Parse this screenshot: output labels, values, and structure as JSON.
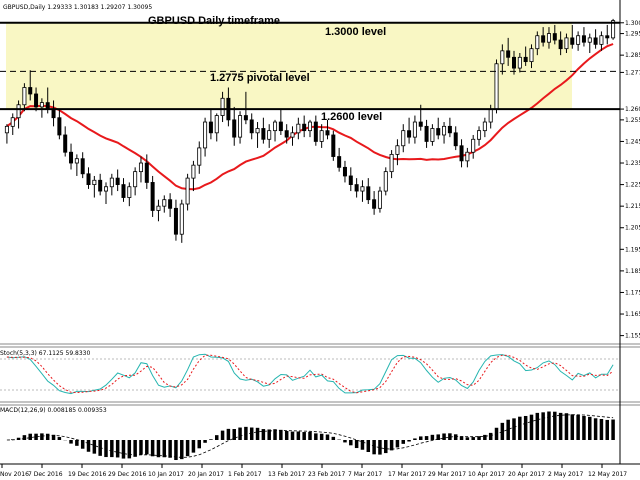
{
  "header": {
    "symbol_info": "GBPUSD,Daily  1.29333 1.30183 1.29207 1.30095",
    "title": "GBPUSD Daily timeframe"
  },
  "annotations": {
    "level_1300": "1.3000 level",
    "level_12775": "1.2775 pivotal level",
    "level_1260": "1.2600 level"
  },
  "indicators": {
    "stoch_label": "Stoch(5,3,3) 67.1125 59.8330",
    "macd_label": "MACD(12,26,9) 0.008185 0.009353"
  },
  "colors": {
    "zone": "#f9f7c4",
    "ma": "#e8191c",
    "stoch_main": "#26b5b0",
    "stoch_signal": "#e8191c"
  },
  "chart_data": {
    "type": "candlestick",
    "price_axis_ticks": [
      "1.300",
      "1.295",
      "1.285",
      "1.277",
      "1.260",
      "1.255",
      "1.245",
      "1.235",
      "1.225",
      "1.215",
      "1.205",
      "1.195",
      "1.185",
      "1.175",
      "1.165",
      "1.155"
    ],
    "date_axis_ticks": [
      "Nov 2016",
      "7 Dec 2016",
      "19 Dec 2016",
      "29 Dec 2016",
      "10 Jan 2017",
      "20 Jan 2017",
      "1 Feb 2017",
      "13 Feb 2017",
      "23 Feb 2017",
      "7 Mar 2017",
      "17 Mar 2017",
      "29 Mar 2017",
      "10 Apr 2017",
      "20 Apr 2017",
      "2 May 2017",
      "12 May 2017"
    ],
    "ylim": [
      1.1525,
      1.305
    ],
    "levels": [
      1.3,
      1.2775,
      1.26
    ],
    "candles": [
      {
        "o": 1.249,
        "h": 1.253,
        "l": 1.244,
        "c": 1.252
      },
      {
        "o": 1.252,
        "h": 1.258,
        "l": 1.248,
        "c": 1.256
      },
      {
        "o": 1.256,
        "h": 1.264,
        "l": 1.251,
        "c": 1.262
      },
      {
        "o": 1.262,
        "h": 1.272,
        "l": 1.259,
        "c": 1.27
      },
      {
        "o": 1.27,
        "h": 1.278,
        "l": 1.264,
        "c": 1.267
      },
      {
        "o": 1.267,
        "h": 1.27,
        "l": 1.259,
        "c": 1.261
      },
      {
        "o": 1.261,
        "h": 1.265,
        "l": 1.256,
        "c": 1.263
      },
      {
        "o": 1.263,
        "h": 1.27,
        "l": 1.258,
        "c": 1.26
      },
      {
        "o": 1.26,
        "h": 1.264,
        "l": 1.252,
        "c": 1.256
      },
      {
        "o": 1.256,
        "h": 1.26,
        "l": 1.246,
        "c": 1.248
      },
      {
        "o": 1.248,
        "h": 1.252,
        "l": 1.238,
        "c": 1.24
      },
      {
        "o": 1.24,
        "h": 1.244,
        "l": 1.232,
        "c": 1.235
      },
      {
        "o": 1.235,
        "h": 1.239,
        "l": 1.229,
        "c": 1.237
      },
      {
        "o": 1.237,
        "h": 1.24,
        "l": 1.228,
        "c": 1.23
      },
      {
        "o": 1.23,
        "h": 1.233,
        "l": 1.223,
        "c": 1.225
      },
      {
        "o": 1.225,
        "h": 1.229,
        "l": 1.219,
        "c": 1.227
      },
      {
        "o": 1.227,
        "h": 1.23,
        "l": 1.22,
        "c": 1.222
      },
      {
        "o": 1.222,
        "h": 1.226,
        "l": 1.216,
        "c": 1.224
      },
      {
        "o": 1.224,
        "h": 1.23,
        "l": 1.22,
        "c": 1.228
      },
      {
        "o": 1.228,
        "h": 1.232,
        "l": 1.222,
        "c": 1.225
      },
      {
        "o": 1.225,
        "h": 1.228,
        "l": 1.217,
        "c": 1.219
      },
      {
        "o": 1.219,
        "h": 1.226,
        "l": 1.215,
        "c": 1.224
      },
      {
        "o": 1.224,
        "h": 1.233,
        "l": 1.22,
        "c": 1.231
      },
      {
        "o": 1.231,
        "h": 1.238,
        "l": 1.226,
        "c": 1.235
      },
      {
        "o": 1.235,
        "h": 1.239,
        "l": 1.223,
        "c": 1.226
      },
      {
        "o": 1.226,
        "h": 1.229,
        "l": 1.21,
        "c": 1.213
      },
      {
        "o": 1.213,
        "h": 1.218,
        "l": 1.208,
        "c": 1.215
      },
      {
        "o": 1.215,
        "h": 1.22,
        "l": 1.212,
        "c": 1.218
      },
      {
        "o": 1.218,
        "h": 1.221,
        "l": 1.21,
        "c": 1.214
      },
      {
        "o": 1.214,
        "h": 1.218,
        "l": 1.199,
        "c": 1.202
      },
      {
        "o": 1.202,
        "h": 1.218,
        "l": 1.198,
        "c": 1.216
      },
      {
        "o": 1.216,
        "h": 1.23,
        "l": 1.213,
        "c": 1.228
      },
      {
        "o": 1.228,
        "h": 1.236,
        "l": 1.222,
        "c": 1.234
      },
      {
        "o": 1.234,
        "h": 1.245,
        "l": 1.23,
        "c": 1.242
      },
      {
        "o": 1.242,
        "h": 1.256,
        "l": 1.238,
        "c": 1.254
      },
      {
        "o": 1.254,
        "h": 1.26,
        "l": 1.246,
        "c": 1.249
      },
      {
        "o": 1.249,
        "h": 1.258,
        "l": 1.245,
        "c": 1.257
      },
      {
        "o": 1.257,
        "h": 1.268,
        "l": 1.254,
        "c": 1.265
      },
      {
        "o": 1.265,
        "h": 1.27,
        "l": 1.252,
        "c": 1.255
      },
      {
        "o": 1.255,
        "h": 1.261,
        "l": 1.243,
        "c": 1.247
      },
      {
        "o": 1.247,
        "h": 1.259,
        "l": 1.244,
        "c": 1.257
      },
      {
        "o": 1.257,
        "h": 1.268,
        "l": 1.253,
        "c": 1.255
      },
      {
        "o": 1.255,
        "h": 1.258,
        "l": 1.246,
        "c": 1.249
      },
      {
        "o": 1.249,
        "h": 1.254,
        "l": 1.242,
        "c": 1.251
      },
      {
        "o": 1.251,
        "h": 1.256,
        "l": 1.244,
        "c": 1.246
      },
      {
        "o": 1.246,
        "h": 1.253,
        "l": 1.242,
        "c": 1.25
      },
      {
        "o": 1.25,
        "h": 1.255,
        "l": 1.245,
        "c": 1.254
      },
      {
        "o": 1.254,
        "h": 1.26,
        "l": 1.248,
        "c": 1.25
      },
      {
        "o": 1.25,
        "h": 1.253,
        "l": 1.244,
        "c": 1.247
      },
      {
        "o": 1.247,
        "h": 1.252,
        "l": 1.243,
        "c": 1.249
      },
      {
        "o": 1.249,
        "h": 1.256,
        "l": 1.246,
        "c": 1.253
      },
      {
        "o": 1.253,
        "h": 1.257,
        "l": 1.247,
        "c": 1.25
      },
      {
        "o": 1.25,
        "h": 1.255,
        "l": 1.247,
        "c": 1.254
      },
      {
        "o": 1.254,
        "h": 1.257,
        "l": 1.243,
        "c": 1.245
      },
      {
        "o": 1.245,
        "h": 1.253,
        "l": 1.242,
        "c": 1.25
      },
      {
        "o": 1.25,
        "h": 1.255,
        "l": 1.246,
        "c": 1.248
      },
      {
        "o": 1.248,
        "h": 1.25,
        "l": 1.236,
        "c": 1.238
      },
      {
        "o": 1.238,
        "h": 1.242,
        "l": 1.231,
        "c": 1.233
      },
      {
        "o": 1.233,
        "h": 1.236,
        "l": 1.226,
        "c": 1.229
      },
      {
        "o": 1.229,
        "h": 1.233,
        "l": 1.222,
        "c": 1.225
      },
      {
        "o": 1.225,
        "h": 1.228,
        "l": 1.219,
        "c": 1.222
      },
      {
        "o": 1.222,
        "h": 1.227,
        "l": 1.217,
        "c": 1.224
      },
      {
        "o": 1.224,
        "h": 1.228,
        "l": 1.216,
        "c": 1.218
      },
      {
        "o": 1.218,
        "h": 1.222,
        "l": 1.211,
        "c": 1.214
      },
      {
        "o": 1.214,
        "h": 1.224,
        "l": 1.212,
        "c": 1.222
      },
      {
        "o": 1.222,
        "h": 1.233,
        "l": 1.22,
        "c": 1.231
      },
      {
        "o": 1.231,
        "h": 1.241,
        "l": 1.228,
        "c": 1.239
      },
      {
        "o": 1.239,
        "h": 1.246,
        "l": 1.234,
        "c": 1.243
      },
      {
        "o": 1.243,
        "h": 1.253,
        "l": 1.24,
        "c": 1.25
      },
      {
        "o": 1.25,
        "h": 1.256,
        "l": 1.244,
        "c": 1.247
      },
      {
        "o": 1.247,
        "h": 1.257,
        "l": 1.244,
        "c": 1.254
      },
      {
        "o": 1.254,
        "h": 1.262,
        "l": 1.25,
        "c": 1.252
      },
      {
        "o": 1.252,
        "h": 1.255,
        "l": 1.242,
        "c": 1.245
      },
      {
        "o": 1.245,
        "h": 1.253,
        "l": 1.243,
        "c": 1.251
      },
      {
        "o": 1.251,
        "h": 1.256,
        "l": 1.246,
        "c": 1.248
      },
      {
        "o": 1.248,
        "h": 1.254,
        "l": 1.244,
        "c": 1.252
      },
      {
        "o": 1.252,
        "h": 1.256,
        "l": 1.247,
        "c": 1.249
      },
      {
        "o": 1.249,
        "h": 1.252,
        "l": 1.241,
        "c": 1.243
      },
      {
        "o": 1.243,
        "h": 1.246,
        "l": 1.233,
        "c": 1.236
      },
      {
        "o": 1.236,
        "h": 1.242,
        "l": 1.233,
        "c": 1.24
      },
      {
        "o": 1.24,
        "h": 1.248,
        "l": 1.237,
        "c": 1.246
      },
      {
        "o": 1.246,
        "h": 1.252,
        "l": 1.243,
        "c": 1.25
      },
      {
        "o": 1.25,
        "h": 1.256,
        "l": 1.247,
        "c": 1.254
      },
      {
        "o": 1.254,
        "h": 1.262,
        "l": 1.251,
        "c": 1.26
      },
      {
        "o": 1.26,
        "h": 1.283,
        "l": 1.258,
        "c": 1.281
      },
      {
        "o": 1.281,
        "h": 1.29,
        "l": 1.276,
        "c": 1.287
      },
      {
        "o": 1.287,
        "h": 1.293,
        "l": 1.28,
        "c": 1.284
      },
      {
        "o": 1.284,
        "h": 1.287,
        "l": 1.276,
        "c": 1.279
      },
      {
        "o": 1.279,
        "h": 1.286,
        "l": 1.277,
        "c": 1.284
      },
      {
        "o": 1.284,
        "h": 1.289,
        "l": 1.28,
        "c": 1.282
      },
      {
        "o": 1.282,
        "h": 1.29,
        "l": 1.279,
        "c": 1.288
      },
      {
        "o": 1.288,
        "h": 1.296,
        "l": 1.285,
        "c": 1.294
      },
      {
        "o": 1.294,
        "h": 1.298,
        "l": 1.289,
        "c": 1.291
      },
      {
        "o": 1.291,
        "h": 1.298,
        "l": 1.288,
        "c": 1.295
      },
      {
        "o": 1.295,
        "h": 1.299,
        "l": 1.29,
        "c": 1.292
      },
      {
        "o": 1.292,
        "h": 1.296,
        "l": 1.285,
        "c": 1.288
      },
      {
        "o": 1.288,
        "h": 1.295,
        "l": 1.286,
        "c": 1.293
      },
      {
        "o": 1.293,
        "h": 1.299,
        "l": 1.288,
        "c": 1.29
      },
      {
        "o": 1.29,
        "h": 1.296,
        "l": 1.287,
        "c": 1.294
      },
      {
        "o": 1.294,
        "h": 1.298,
        "l": 1.289,
        "c": 1.291
      },
      {
        "o": 1.291,
        "h": 1.295,
        "l": 1.286,
        "c": 1.293
      },
      {
        "o": 1.293,
        "h": 1.297,
        "l": 1.288,
        "c": 1.29
      },
      {
        "o": 1.29,
        "h": 1.296,
        "l": 1.287,
        "c": 1.294
      },
      {
        "o": 1.294,
        "h": 1.299,
        "l": 1.29,
        "c": 1.293
      },
      {
        "o": 1.293,
        "h": 1.3018,
        "l": 1.2921,
        "c": 1.301
      }
    ]
  }
}
